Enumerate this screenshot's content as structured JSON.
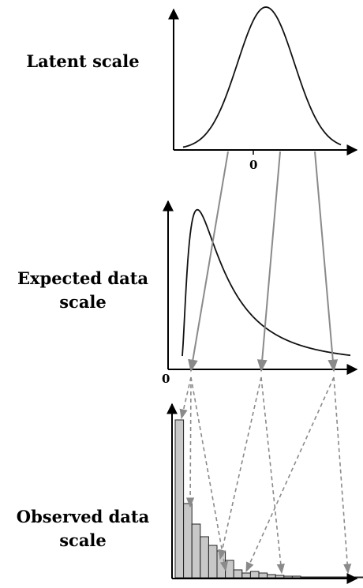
{
  "labels": {
    "latent": "Latent scale",
    "expected_line1": "Expected data",
    "expected_line2": "scale",
    "observed_line1": "Observed data",
    "observed_line2": "scale"
  },
  "ticks": {
    "latent_zero": "0",
    "expected_zero": "0"
  },
  "histogram_heights": [
    200,
    94,
    68,
    52,
    41,
    34,
    22,
    10,
    6,
    8,
    6,
    4,
    3,
    2,
    2,
    1,
    1,
    1,
    1,
    1,
    1,
    1,
    1,
    1
  ],
  "colors": {
    "axis": "#000000",
    "curve": "#111111",
    "arrow_solid": "#8a8a8a",
    "arrow_dashed": "#8a8a8a",
    "bar_fill": "#c8c8c8"
  }
}
